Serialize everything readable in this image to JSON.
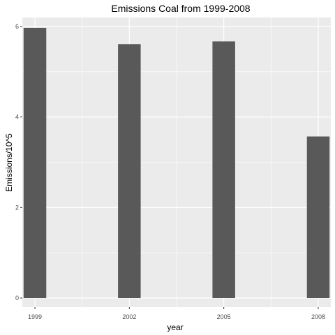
{
  "chart_data": {
    "type": "bar",
    "title": "Emissions Coal from 1999-2008",
    "xlabel": "year",
    "ylabel": "Emissions/10^5",
    "categories": [
      "1999",
      "2002",
      "2005",
      "2008"
    ],
    "values": [
      5.97,
      5.61,
      5.67,
      3.57
    ],
    "x_range": [
      1998.6,
      2008.4
    ],
    "ylim": [
      -0.2,
      6.2
    ],
    "y_ticks": [
      0,
      2,
      4,
      6
    ],
    "grid": true,
    "colors": {
      "bar": "#595959",
      "panel": "#ebebeb",
      "grid": "#ffffff"
    }
  }
}
